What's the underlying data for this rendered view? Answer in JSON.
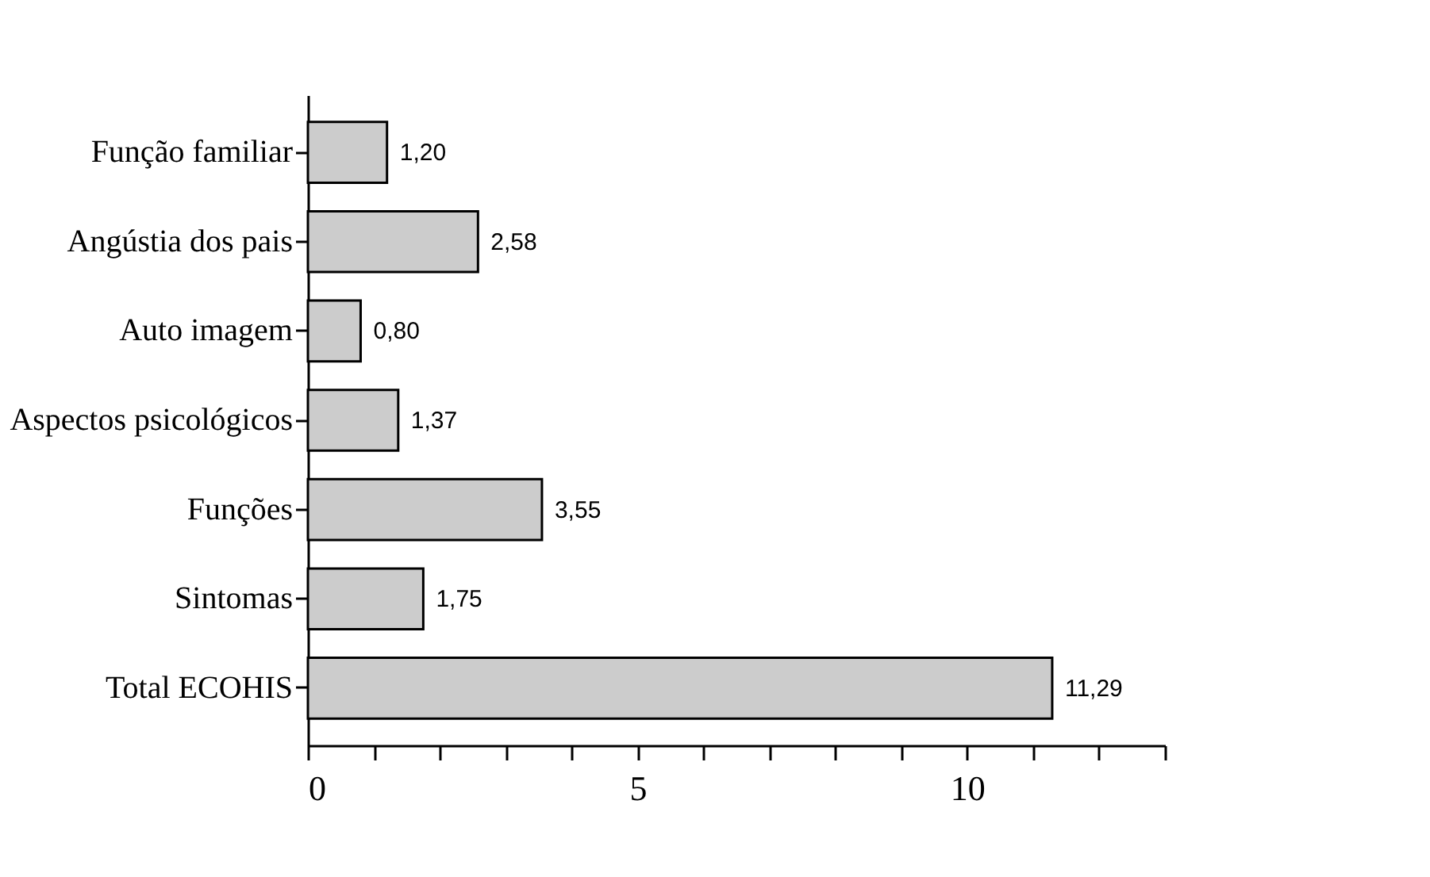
{
  "chart_data": {
    "type": "bar",
    "orientation": "horizontal",
    "categories": [
      "Função familiar",
      "Angústia dos pais",
      "Auto imagem",
      "Aspectos psicológicos",
      "Funções",
      "Sintomas",
      "Total ECOHIS"
    ],
    "values": [
      1.2,
      2.58,
      0.8,
      1.37,
      3.55,
      1.75,
      11.29
    ],
    "value_labels": [
      "1,20",
      "2,58",
      "0,80",
      "1,37",
      "3,55",
      "1,75",
      "11,29"
    ],
    "color": "#cccccc",
    "xlim": [
      0,
      13
    ],
    "xticks": [
      0,
      {
        "value": 1,
        "label": null
      },
      {
        "value": 2,
        "label": null
      },
      {
        "value": 3,
        "label": null
      },
      {
        "value": 4,
        "label": null
      },
      5,
      {
        "value": 6,
        "label": null
      },
      {
        "value": 7,
        "label": null
      },
      {
        "value": 8,
        "label": null
      },
      {
        "value": 9,
        "label": null
      },
      10,
      {
        "value": 11,
        "label": null
      },
      {
        "value": 12,
        "label": null
      },
      {
        "value": 13,
        "label": null
      }
    ],
    "grid": false
  }
}
